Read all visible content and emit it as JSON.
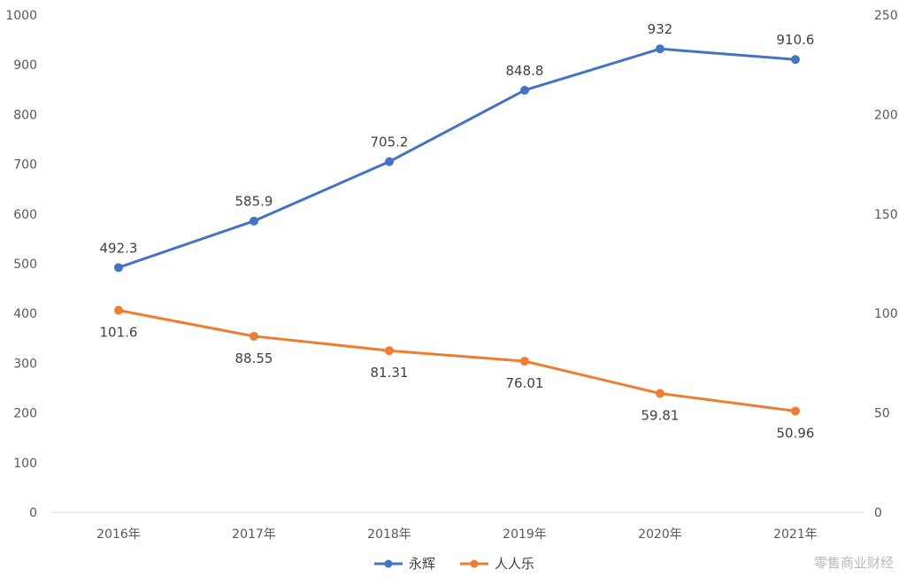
{
  "chart_data": {
    "type": "line",
    "categories": [
      "2016年",
      "2017年",
      "2018年",
      "2019年",
      "2020年",
      "2021年"
    ],
    "y_left": {
      "min": 0,
      "max": 1000,
      "step": 100,
      "ticks": [
        "0",
        "100",
        "200",
        "300",
        "400",
        "500",
        "600",
        "700",
        "800",
        "900",
        "1000"
      ]
    },
    "y_right": {
      "min": 0,
      "max": 250,
      "step": 50,
      "ticks": [
        "0",
        "50",
        "100",
        "150",
        "200",
        "250"
      ]
    },
    "series": [
      {
        "name": "永辉",
        "axis": "left",
        "color": "#4472C4",
        "label_position": "above",
        "values": [
          492.3,
          585.9,
          705.2,
          848.8,
          932,
          910.6
        ],
        "labels": [
          "492.3",
          "585.9",
          "705.2",
          "848.8",
          "932",
          "910.6"
        ]
      },
      {
        "name": "人人乐",
        "axis": "right",
        "color": "#ED7D31",
        "label_position": "below",
        "values": [
          101.6,
          88.55,
          81.31,
          76.01,
          59.81,
          50.96
        ],
        "labels": [
          "101.6",
          "88.55",
          "81.31",
          "76.01",
          "59.81",
          "50.96"
        ]
      }
    ],
    "grid": false,
    "legend": "bottom-center"
  },
  "watermark": "零售商业财经"
}
